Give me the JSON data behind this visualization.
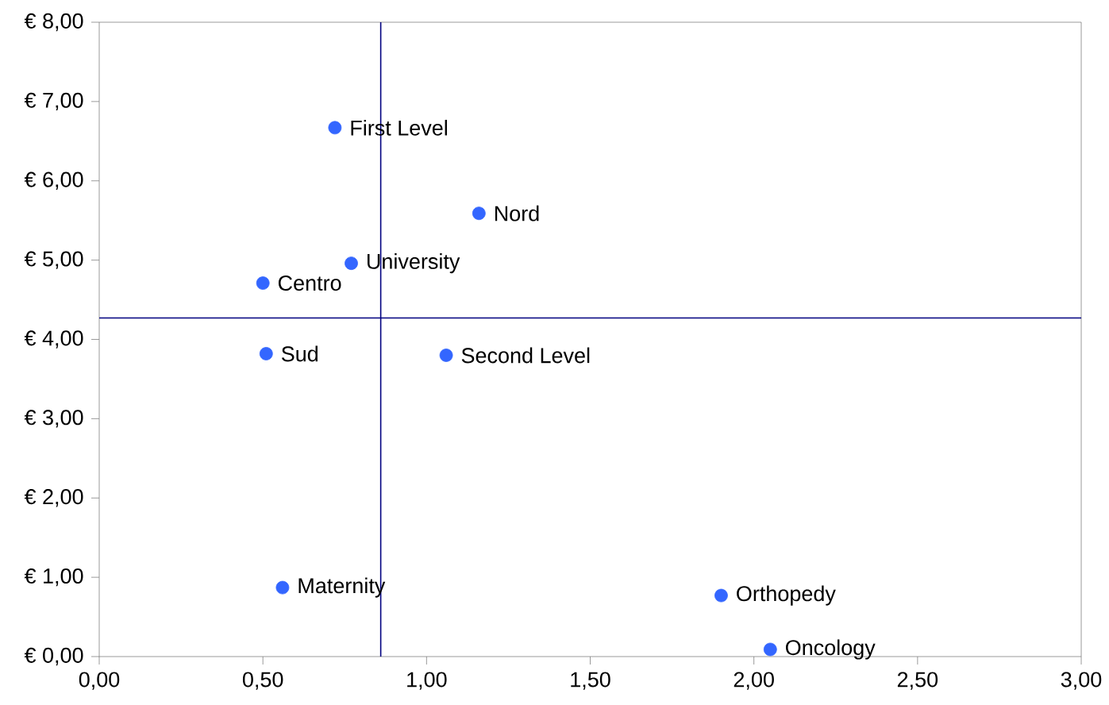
{
  "chart_data": {
    "type": "scatter",
    "color": "#3366ff",
    "grid": false,
    "x": [
      0.72,
      1.16,
      0.77,
      0.5,
      0.51,
      1.06,
      0.56,
      1.9,
      2.05
    ],
    "values": [
      6.67,
      5.59,
      4.96,
      4.71,
      3.82,
      3.8,
      0.87,
      0.77,
      0.09
    ],
    "xlim": [
      0,
      3
    ],
    "ylim": [
      0,
      8
    ],
    "xticks": [
      {
        "value": 0,
        "label": "0,00"
      },
      {
        "value": 0.5,
        "label": "0,50"
      },
      {
        "value": 1,
        "label": "1,00"
      },
      {
        "value": 1.5,
        "label": "1,50"
      },
      {
        "value": 2,
        "label": "2,00"
      },
      {
        "value": 2.5,
        "label": "2,50"
      },
      {
        "value": 3,
        "label": "3,00"
      }
    ],
    "yticks": [
      {
        "value": 0,
        "label": "€ 0,00"
      },
      {
        "value": 1,
        "label": "€ 1,00"
      },
      {
        "value": 2,
        "label": "€ 2,00"
      },
      {
        "value": 3,
        "label": "€ 3,00"
      },
      {
        "value": 4,
        "label": "€ 4,00"
      },
      {
        "value": 5,
        "label": "€ 5,00"
      },
      {
        "value": 6,
        "label": "€ 6,00"
      },
      {
        "value": 7,
        "label": "€ 7,00"
      },
      {
        "value": 8,
        "label": "€ 8,00"
      }
    ],
    "ref_lines": [
      {
        "axis": "x",
        "value": 0.86,
        "color": "#000080"
      },
      {
        "axis": "y",
        "value": 4.27,
        "color": "#000080"
      }
    ],
    "annotations": [
      {
        "text": "First Level",
        "x": 0.72,
        "y": 6.67
      },
      {
        "text": "Nord",
        "x": 1.16,
        "y": 5.59
      },
      {
        "text": "University",
        "x": 0.77,
        "y": 4.96
      },
      {
        "text": "Centro",
        "x": 0.5,
        "y": 4.71
      },
      {
        "text": "Sud",
        "x": 0.51,
        "y": 3.82
      },
      {
        "text": "Second Level",
        "x": 1.06,
        "y": 3.8
      },
      {
        "text": "Maternity",
        "x": 0.56,
        "y": 0.87
      },
      {
        "text": "Orthopedy",
        "x": 1.9,
        "y": 0.77
      },
      {
        "text": "Oncology",
        "x": 2.05,
        "y": 0.09
      }
    ]
  }
}
